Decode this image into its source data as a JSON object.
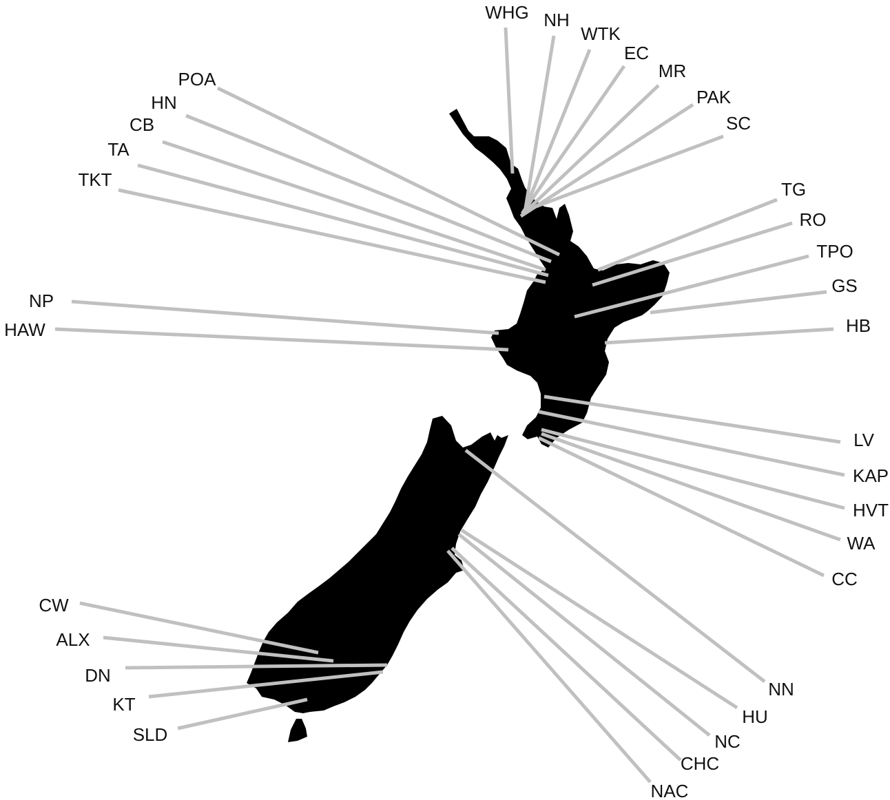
{
  "colors": {
    "land": "#000000",
    "leader": "#c0c0c0",
    "label": "#111111",
    "background": "#ffffff"
  },
  "sites": [
    {
      "code": "WHG"
    },
    {
      "code": "NH"
    },
    {
      "code": "WTK"
    },
    {
      "code": "EC"
    },
    {
      "code": "MR"
    },
    {
      "code": "PAK"
    },
    {
      "code": "SC"
    },
    {
      "code": "POA"
    },
    {
      "code": "HN"
    },
    {
      "code": "CB"
    },
    {
      "code": "TA"
    },
    {
      "code": "TKT"
    },
    {
      "code": "TG"
    },
    {
      "code": "RO"
    },
    {
      "code": "TPO"
    },
    {
      "code": "GS"
    },
    {
      "code": "HB"
    },
    {
      "code": "NP"
    },
    {
      "code": "HAW"
    },
    {
      "code": "LV"
    },
    {
      "code": "KAP"
    },
    {
      "code": "HVT"
    },
    {
      "code": "WA"
    },
    {
      "code": "CC"
    },
    {
      "code": "NN"
    },
    {
      "code": "HU"
    },
    {
      "code": "NC"
    },
    {
      "code": "CHC"
    },
    {
      "code": "NAC"
    },
    {
      "code": "CW"
    },
    {
      "code": "ALX"
    },
    {
      "code": "DN"
    },
    {
      "code": "KT"
    },
    {
      "code": "SLD"
    }
  ]
}
